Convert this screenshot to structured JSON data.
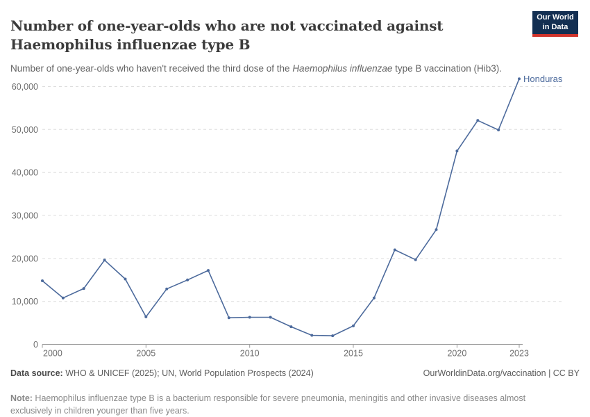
{
  "header": {
    "title_line1": "Number of one-year-olds who are not vaccinated against",
    "title_line2": "Haemophilus influenzae type B",
    "subtitle_prefix": "Number of one-year-olds who haven't received the third dose of the ",
    "subtitle_italic": "Haemophilus influenzae",
    "subtitle_suffix": " type B vaccination (Hib3).",
    "logo": {
      "line1": "Our World",
      "line2": "in Data"
    }
  },
  "footer": {
    "source_label": "Data source:",
    "source_text": " WHO & UNICEF (2025); UN, World Population Prospects (2024)",
    "attribution": "OurWorldinData.org/vaccination | CC BY",
    "note_label": "Note:",
    "note_text": " Haemophilus influenzae type B is a bacterium responsible for severe pneumonia, meningitis and other invasive diseases almost exclusively in children younger than five years."
  },
  "colors": {
    "series_blue": "#4C6A9C",
    "logo_background": "#132F52",
    "logo_stripe": "#D0342C",
    "gridline": "#dedede",
    "axis": "#9a9a9a",
    "tick_text": "#6e6e6e"
  },
  "chart_data": {
    "type": "line",
    "title": "Number of one-year-olds who are not vaccinated against Haemophilus influenzae type B",
    "subtitle": "Number of one-year-olds who haven't received the third dose of the Haemophilus influenzae type B vaccination (Hib3).",
    "xlabel": "",
    "ylabel": "",
    "x": [
      2000,
      2001,
      2002,
      2003,
      2004,
      2005,
      2006,
      2007,
      2008,
      2009,
      2010,
      2011,
      2012,
      2013,
      2014,
      2015,
      2016,
      2017,
      2018,
      2019,
      2020,
      2021,
      2022,
      2023
    ],
    "series": [
      {
        "name": "Honduras",
        "color": "#4C6A9C",
        "values": [
          14800,
          10800,
          13000,
          19600,
          15200,
          6400,
          12900,
          15000,
          17200,
          6200,
          6300,
          6300,
          4100,
          2100,
          2000,
          4300,
          10800,
          22000,
          19700,
          26700,
          45000,
          52100,
          49900,
          61800
        ]
      }
    ],
    "x_ticks": [
      2000,
      2005,
      2010,
      2015,
      2020,
      2023
    ],
    "y_ticks": [
      0,
      10000,
      20000,
      30000,
      40000,
      50000,
      60000
    ],
    "ylim": [
      0,
      60000
    ],
    "grid": "horizontal-dashed",
    "legend_position": "end-of-line-label"
  }
}
